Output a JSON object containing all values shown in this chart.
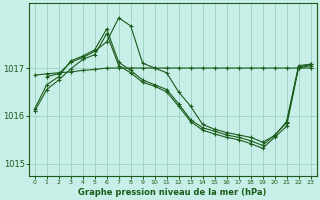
{
  "background_color": "#c8eee8",
  "grid_color": "#a0d4cc",
  "line_color": "#1a5c1a",
  "title": "Graphe pression niveau de la mer (hPa)",
  "xlim": [
    -0.5,
    23.5
  ],
  "ylim": [
    1014.75,
    1018.35
  ],
  "yticks": [
    1015,
    1016,
    1017
  ],
  "xticks": [
    0,
    1,
    2,
    3,
    4,
    5,
    6,
    7,
    8,
    9,
    10,
    11,
    12,
    13,
    14,
    15,
    16,
    17,
    18,
    19,
    20,
    21,
    22,
    23
  ],
  "curves": [
    {
      "x": [
        0,
        1,
        2,
        3,
        4,
        5,
        6,
        7,
        8,
        9,
        10,
        11,
        12,
        13,
        14,
        15,
        16,
        17,
        18,
        19,
        20,
        21,
        22,
        23
      ],
      "y": [
        1016.85,
        1016.88,
        1016.9,
        1016.92,
        1016.95,
        1016.97,
        1017.0,
        1017.0,
        1017.0,
        1017.0,
        1017.0,
        1017.0,
        1017.0,
        1017.0,
        1017.0,
        1017.0,
        1017.0,
        1017.0,
        1017.0,
        1017.0,
        1017.0,
        1017.0,
        1017.0,
        1017.0
      ]
    },
    {
      "x": [
        0,
        1,
        2,
        3,
        4,
        5,
        6,
        7,
        8,
        9,
        10,
        11,
        12,
        13,
        14,
        15,
        16,
        17,
        18,
        19,
        20,
        21,
        22,
        23
      ],
      "y": [
        1016.15,
        1016.65,
        1016.82,
        1017.15,
        1017.25,
        1017.38,
        1017.82,
        1017.12,
        1016.95,
        1016.75,
        1016.65,
        1016.55,
        1016.25,
        1015.92,
        1015.75,
        1015.68,
        1015.6,
        1015.55,
        1015.48,
        1015.38,
        1015.6,
        1015.85,
        1017.05,
        1017.08
      ]
    },
    {
      "x": [
        0,
        1,
        2,
        3,
        4,
        5,
        6,
        7,
        8,
        9,
        10,
        11,
        12,
        13,
        14,
        15,
        16,
        17,
        18,
        19,
        20,
        21,
        22,
        23
      ],
      "y": [
        1016.1,
        1016.55,
        1016.75,
        1016.98,
        1017.18,
        1017.28,
        1017.72,
        1017.05,
        1016.9,
        1016.7,
        1016.62,
        1016.5,
        1016.2,
        1015.88,
        1015.7,
        1015.62,
        1015.55,
        1015.5,
        1015.42,
        1015.32,
        1015.55,
        1015.78,
        1017.0,
        1017.05
      ]
    },
    {
      "x": [
        1,
        2,
        3,
        4,
        5,
        6,
        7,
        8,
        9,
        10,
        11,
        12,
        13,
        14,
        15,
        16,
        17,
        18,
        19,
        20,
        21,
        22,
        23
      ],
      "y": [
        1016.82,
        1016.88,
        1017.12,
        1017.22,
        1017.35,
        1017.55,
        1018.05,
        1017.88,
        1017.1,
        1017.0,
        1016.9,
        1016.5,
        1016.2,
        1015.82,
        1015.72,
        1015.65,
        1015.6,
        1015.55,
        1015.45,
        1015.58,
        1015.88,
        1017.02,
        1017.08
      ]
    }
  ]
}
